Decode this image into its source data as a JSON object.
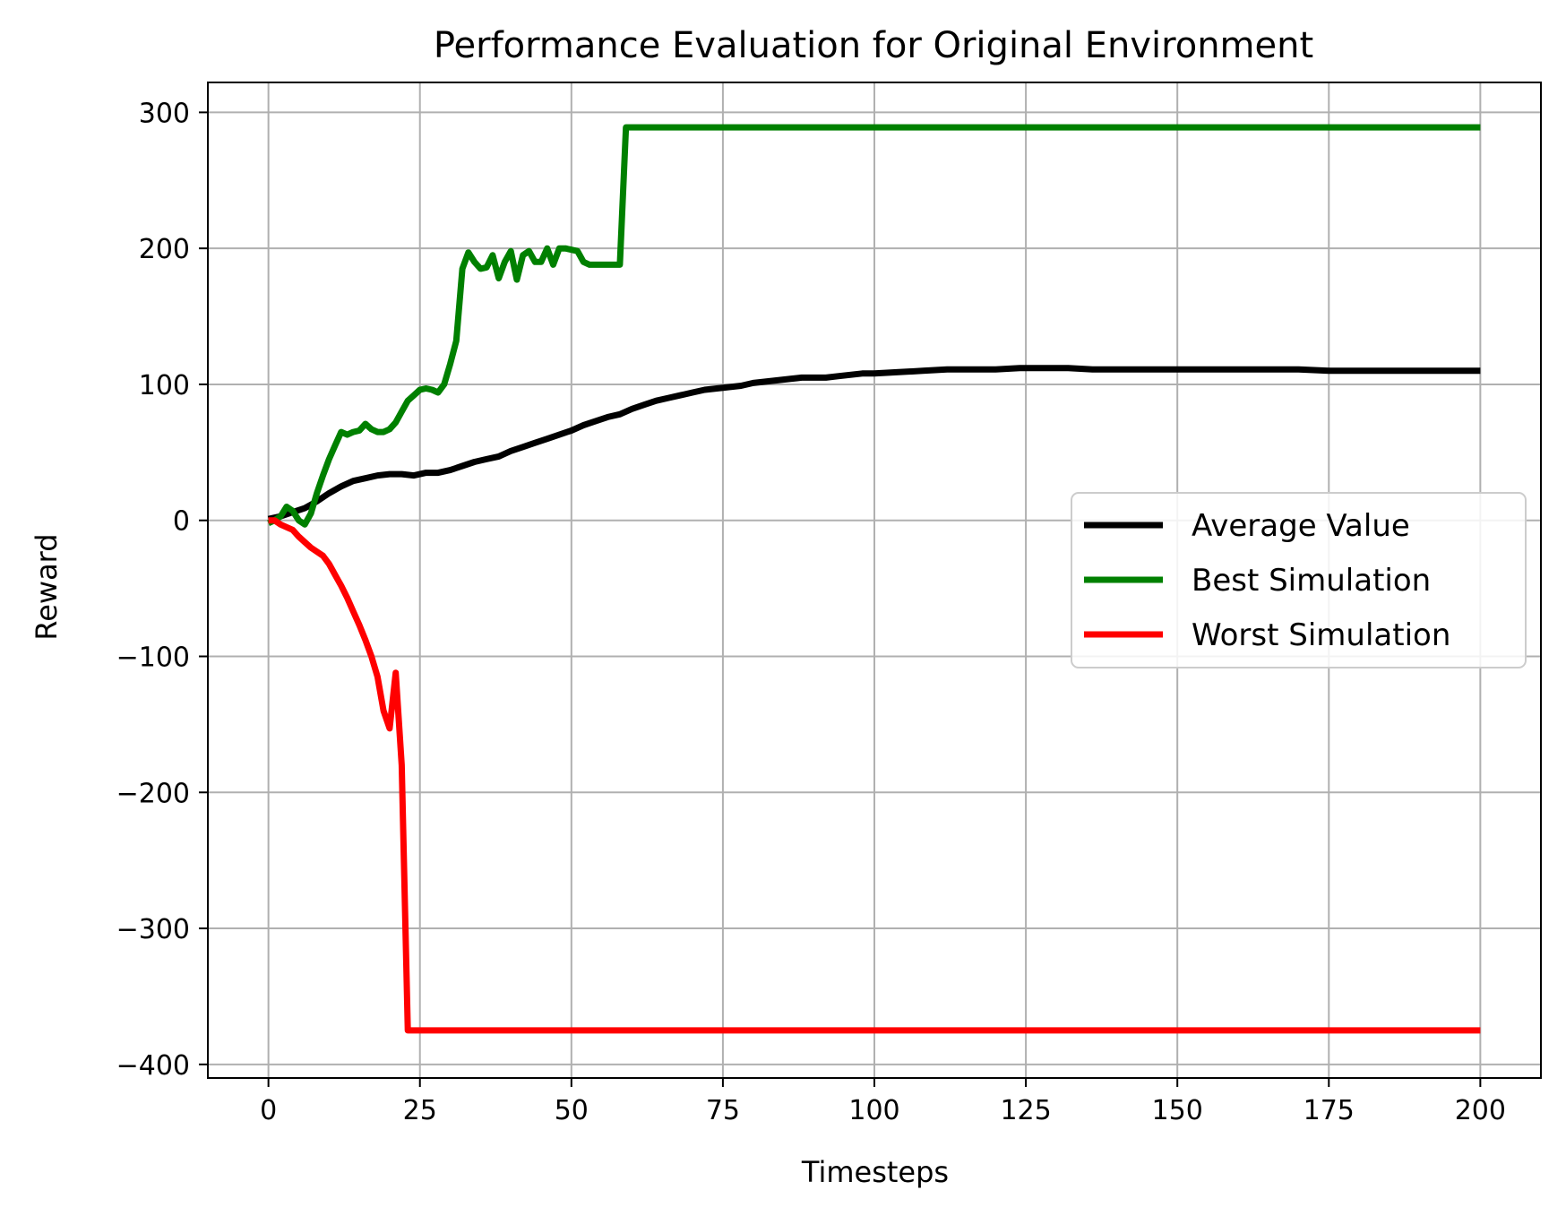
{
  "chart_data": {
    "type": "line",
    "title": "Performance Evaluation for Original Environment",
    "xlabel": "Timesteps",
    "ylabel": "Reward",
    "xlim": [
      -10,
      210
    ],
    "ylim": [
      -410,
      322
    ],
    "xticks": [
      0,
      25,
      50,
      75,
      100,
      125,
      150,
      175,
      200
    ],
    "yticks": [
      -400,
      -300,
      -200,
      -100,
      0,
      100,
      200,
      300
    ],
    "xtick_labels": [
      "0",
      "25",
      "50",
      "75",
      "100",
      "125",
      "150",
      "175",
      "200"
    ],
    "ytick_labels": [
      "−400",
      "−300",
      "−200",
      "−100",
      "0",
      "100",
      "200",
      "300"
    ],
    "grid": true,
    "legend_position": "center-right",
    "series": [
      {
        "name": "Average Value",
        "color": "#000000",
        "points": [
          [
            0,
            1
          ],
          [
            2,
            3
          ],
          [
            4,
            6
          ],
          [
            6,
            9
          ],
          [
            8,
            14
          ],
          [
            10,
            20
          ],
          [
            12,
            25
          ],
          [
            14,
            29
          ],
          [
            16,
            31
          ],
          [
            18,
            33
          ],
          [
            20,
            34
          ],
          [
            22,
            34
          ],
          [
            24,
            33
          ],
          [
            26,
            35
          ],
          [
            28,
            35
          ],
          [
            30,
            37
          ],
          [
            32,
            40
          ],
          [
            34,
            43
          ],
          [
            36,
            45
          ],
          [
            38,
            47
          ],
          [
            40,
            51
          ],
          [
            42,
            54
          ],
          [
            44,
            57
          ],
          [
            46,
            60
          ],
          [
            48,
            63
          ],
          [
            50,
            66
          ],
          [
            52,
            70
          ],
          [
            54,
            73
          ],
          [
            56,
            76
          ],
          [
            58,
            78
          ],
          [
            60,
            82
          ],
          [
            62,
            85
          ],
          [
            64,
            88
          ],
          [
            66,
            90
          ],
          [
            68,
            92
          ],
          [
            70,
            94
          ],
          [
            72,
            96
          ],
          [
            74,
            97
          ],
          [
            76,
            98
          ],
          [
            78,
            99
          ],
          [
            80,
            101
          ],
          [
            82,
            102
          ],
          [
            84,
            103
          ],
          [
            86,
            104
          ],
          [
            88,
            105
          ],
          [
            90,
            105
          ],
          [
            92,
            105
          ],
          [
            94,
            106
          ],
          [
            96,
            107
          ],
          [
            98,
            108
          ],
          [
            100,
            108
          ],
          [
            104,
            109
          ],
          [
            108,
            110
          ],
          [
            112,
            111
          ],
          [
            116,
            111
          ],
          [
            120,
            111
          ],
          [
            124,
            112
          ],
          [
            128,
            112
          ],
          [
            132,
            112
          ],
          [
            136,
            111
          ],
          [
            140,
            111
          ],
          [
            145,
            111
          ],
          [
            150,
            111
          ],
          [
            155,
            111
          ],
          [
            160,
            111
          ],
          [
            165,
            111
          ],
          [
            170,
            111
          ],
          [
            175,
            110
          ],
          [
            180,
            110
          ],
          [
            185,
            110
          ],
          [
            190,
            110
          ],
          [
            195,
            110
          ],
          [
            200,
            110
          ]
        ]
      },
      {
        "name": "Best Simulation",
        "color": "#008000",
        "points": [
          [
            0,
            -2
          ],
          [
            1,
            0
          ],
          [
            2,
            3
          ],
          [
            3,
            10
          ],
          [
            4,
            7
          ],
          [
            5,
            0
          ],
          [
            6,
            -3
          ],
          [
            7,
            5
          ],
          [
            8,
            20
          ],
          [
            9,
            33
          ],
          [
            10,
            45
          ],
          [
            11,
            55
          ],
          [
            12,
            65
          ],
          [
            13,
            63
          ],
          [
            14,
            65
          ],
          [
            15,
            66
          ],
          [
            16,
            71
          ],
          [
            17,
            67
          ],
          [
            18,
            65
          ],
          [
            19,
            65
          ],
          [
            20,
            67
          ],
          [
            21,
            72
          ],
          [
            22,
            80
          ],
          [
            23,
            88
          ],
          [
            24,
            92
          ],
          [
            25,
            96
          ],
          [
            26,
            97
          ],
          [
            27,
            96
          ],
          [
            28,
            94
          ],
          [
            29,
            100
          ],
          [
            30,
            115
          ],
          [
            31,
            132
          ],
          [
            32,
            185
          ],
          [
            33,
            197
          ],
          [
            34,
            190
          ],
          [
            35,
            185
          ],
          [
            36,
            186
          ],
          [
            37,
            195
          ],
          [
            38,
            178
          ],
          [
            39,
            190
          ],
          [
            40,
            198
          ],
          [
            41,
            177
          ],
          [
            42,
            195
          ],
          [
            43,
            198
          ],
          [
            44,
            190
          ],
          [
            45,
            190
          ],
          [
            46,
            200
          ],
          [
            47,
            188
          ],
          [
            48,
            200
          ],
          [
            49,
            200
          ],
          [
            50,
            199
          ],
          [
            51,
            198
          ],
          [
            52,
            190
          ],
          [
            53,
            188
          ],
          [
            54,
            188
          ],
          [
            55,
            188
          ],
          [
            56,
            188
          ],
          [
            57,
            188
          ],
          [
            58,
            188
          ],
          [
            59,
            289
          ],
          [
            100,
            289
          ],
          [
            150,
            289
          ],
          [
            200,
            289
          ]
        ]
      },
      {
        "name": "Worst Simulation",
        "color": "#ff0000",
        "points": [
          [
            0,
            0
          ],
          [
            1,
            0
          ],
          [
            2,
            -3
          ],
          [
            3,
            -5
          ],
          [
            4,
            -7
          ],
          [
            5,
            -12
          ],
          [
            6,
            -16
          ],
          [
            7,
            -20
          ],
          [
            8,
            -23
          ],
          [
            9,
            -26
          ],
          [
            10,
            -32
          ],
          [
            11,
            -40
          ],
          [
            12,
            -48
          ],
          [
            13,
            -57
          ],
          [
            14,
            -67
          ],
          [
            15,
            -77
          ],
          [
            16,
            -88
          ],
          [
            17,
            -100
          ],
          [
            18,
            -115
          ],
          [
            19,
            -140
          ],
          [
            20,
            -153
          ],
          [
            21,
            -112
          ],
          [
            22,
            -180
          ],
          [
            23,
            -375
          ],
          [
            100,
            -375
          ],
          [
            200,
            -375
          ]
        ]
      }
    ]
  }
}
